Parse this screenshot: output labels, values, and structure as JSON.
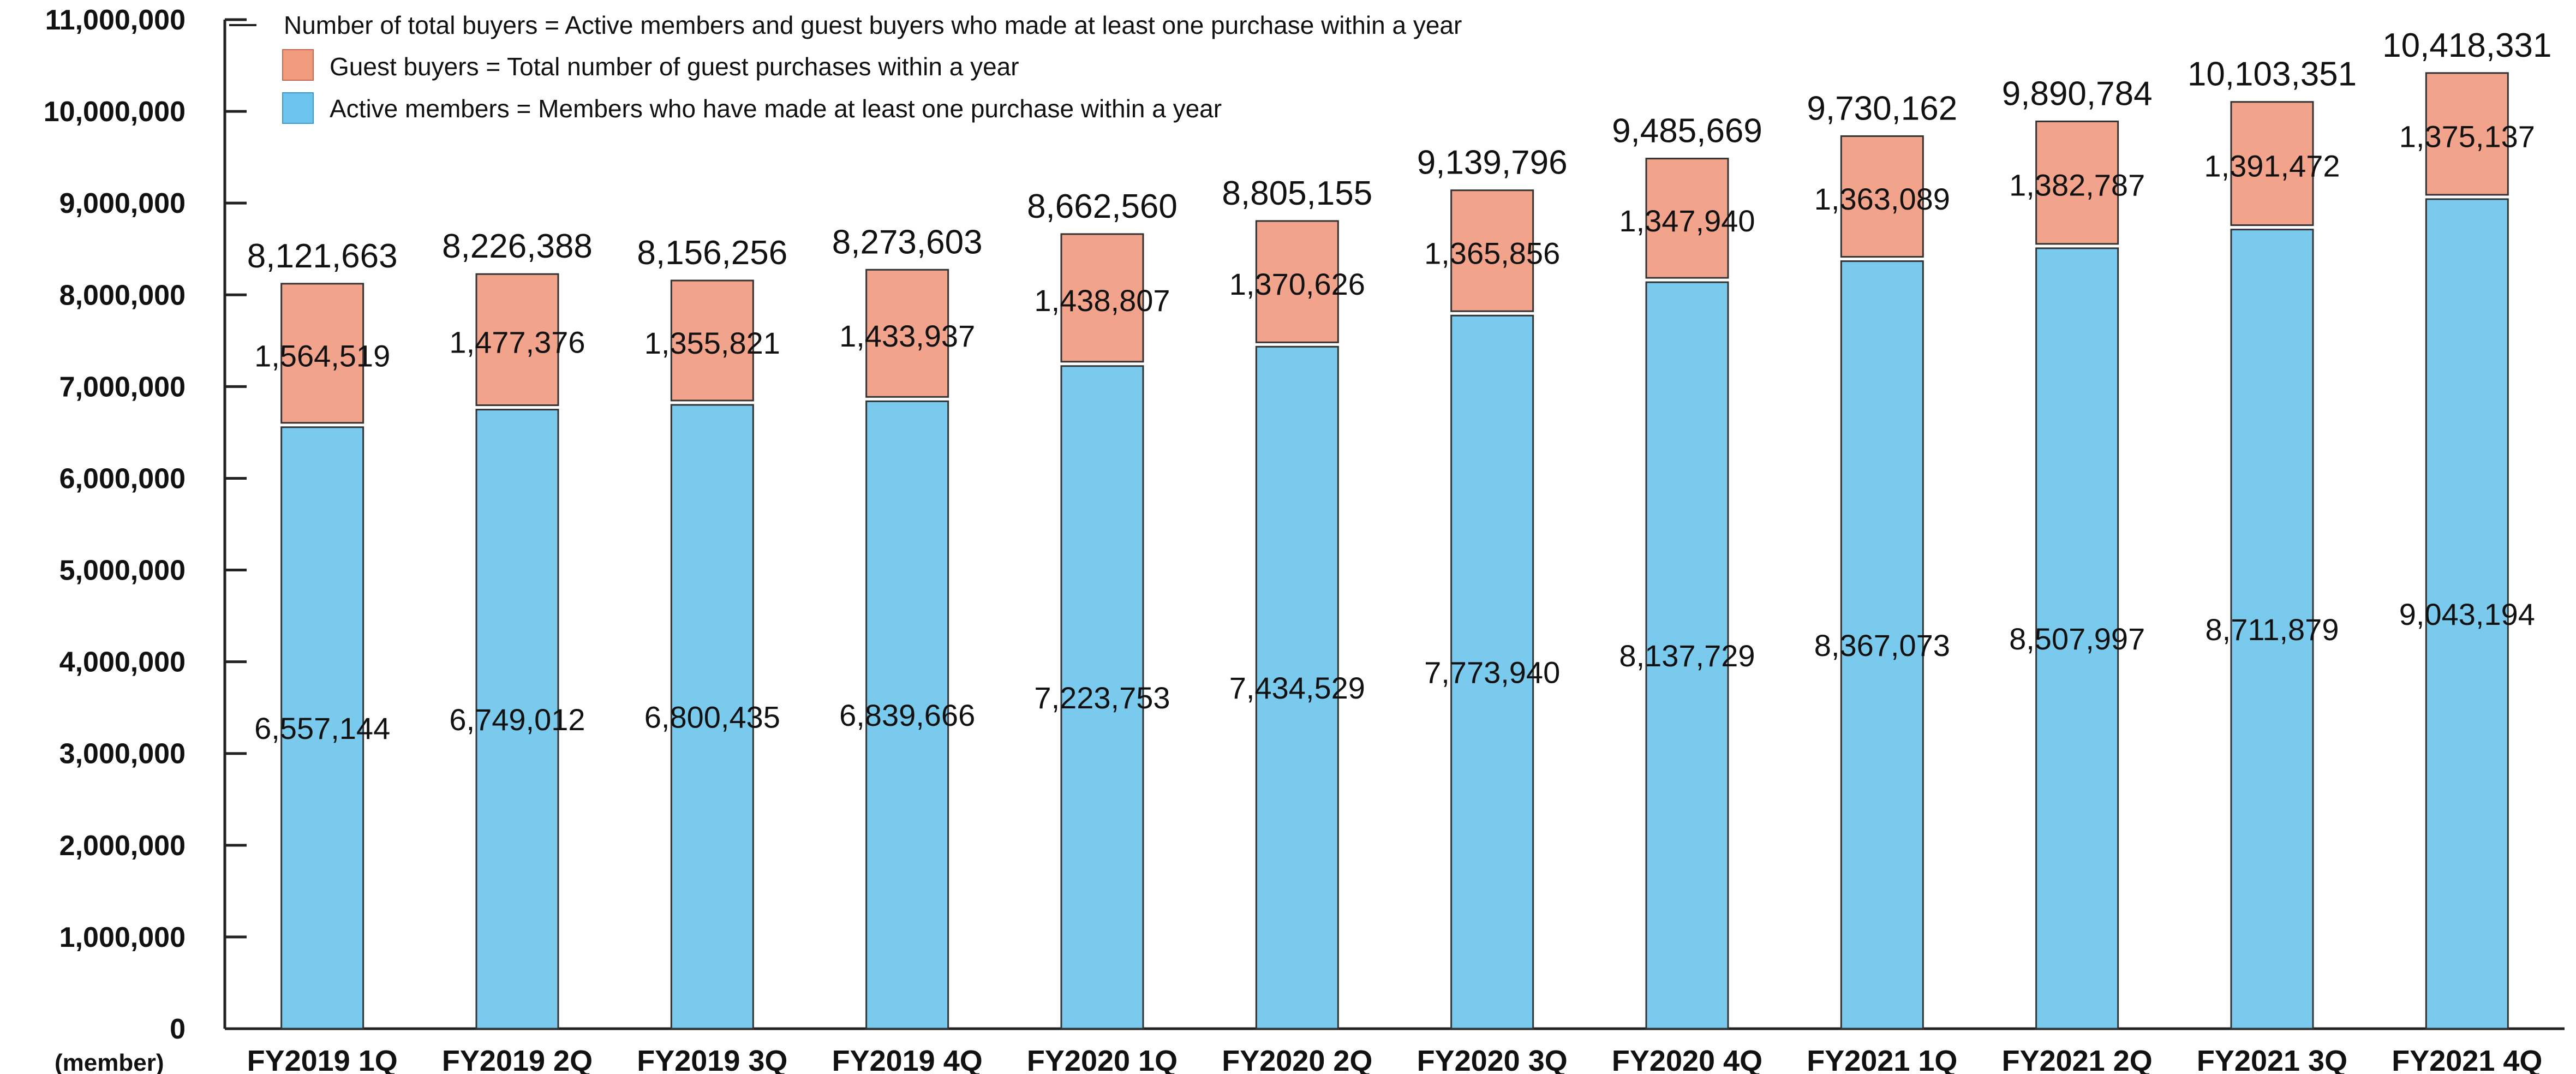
{
  "chart_data": {
    "type": "bar",
    "stacked": true,
    "categories": [
      "FY2019 1Q",
      "FY2019 2Q",
      "FY2019 3Q",
      "FY2019 4Q",
      "FY2020 1Q",
      "FY2020 2Q",
      "FY2020 3Q",
      "FY2020 4Q",
      "FY2021 1Q",
      "FY2021 2Q",
      "FY2021 3Q",
      "FY2021 4Q"
    ],
    "series": [
      {
        "name": "Active members",
        "legend": "Active members = Members who have made at least one purchase within a year",
        "color": "#6cc4ec",
        "values": [
          6557144,
          6749012,
          6800435,
          6839666,
          7223753,
          7434529,
          7773940,
          8137729,
          8367073,
          8507997,
          8711879,
          9043194
        ],
        "labels": [
          "6,557,144",
          "6,749,012",
          "6,800,435",
          "6,839,666",
          "7,223,753",
          "7,434,529",
          "7,773,940",
          "8,137,729",
          "8,367,073",
          "8,507,997",
          "8,711,879",
          "9,043,194"
        ]
      },
      {
        "name": "Guest buyers",
        "legend": "Guest buyers = Total number of guest purchases within a year",
        "color": "#f09a7e",
        "values": [
          1564519,
          1477376,
          1355821,
          1433937,
          1438807,
          1370626,
          1365856,
          1347940,
          1363089,
          1382787,
          1391472,
          1375137
        ],
        "labels": [
          "1,564,519",
          "1,477,376",
          "1,355,821",
          "1,433,937",
          "1,438,807",
          "1,370,626",
          "1,365,856",
          "1,347,940",
          "1,363,089",
          "1,382,787",
          "1,391,472",
          "1,375,137"
        ]
      }
    ],
    "totals": [
      8121663,
      8226388,
      8156256,
      8273603,
      8662560,
      8805155,
      9139796,
      9485669,
      9730162,
      9890784,
      10103351,
      10418331
    ],
    "total_labels": [
      "8,121,663",
      "8,226,388",
      "8,156,256",
      "8,273,603",
      "8,662,560",
      "8,805,155",
      "9,139,796",
      "9,485,669",
      "9,730,162",
      "9,890,784",
      "10,103,351",
      "10,418,331"
    ],
    "legend_note": "Number of total buyers = Active members and guest buyers who made at least one purchase within a year",
    "ylabel_unit": "(member)",
    "ylim": [
      0,
      11000000
    ],
    "yticks": [
      0,
      1000000,
      2000000,
      3000000,
      4000000,
      5000000,
      6000000,
      7000000,
      8000000,
      9000000,
      10000000,
      11000000
    ],
    "ytick_labels": [
      "0",
      "1,000,000",
      "2,000,000",
      "3,000,000",
      "4,000,000",
      "5,000,000",
      "6,000,000",
      "7,000,000",
      "8,000,000",
      "9,000,000",
      "10,000,000",
      "11,000,000"
    ],
    "legend_position": "top-left",
    "grid": false
  }
}
